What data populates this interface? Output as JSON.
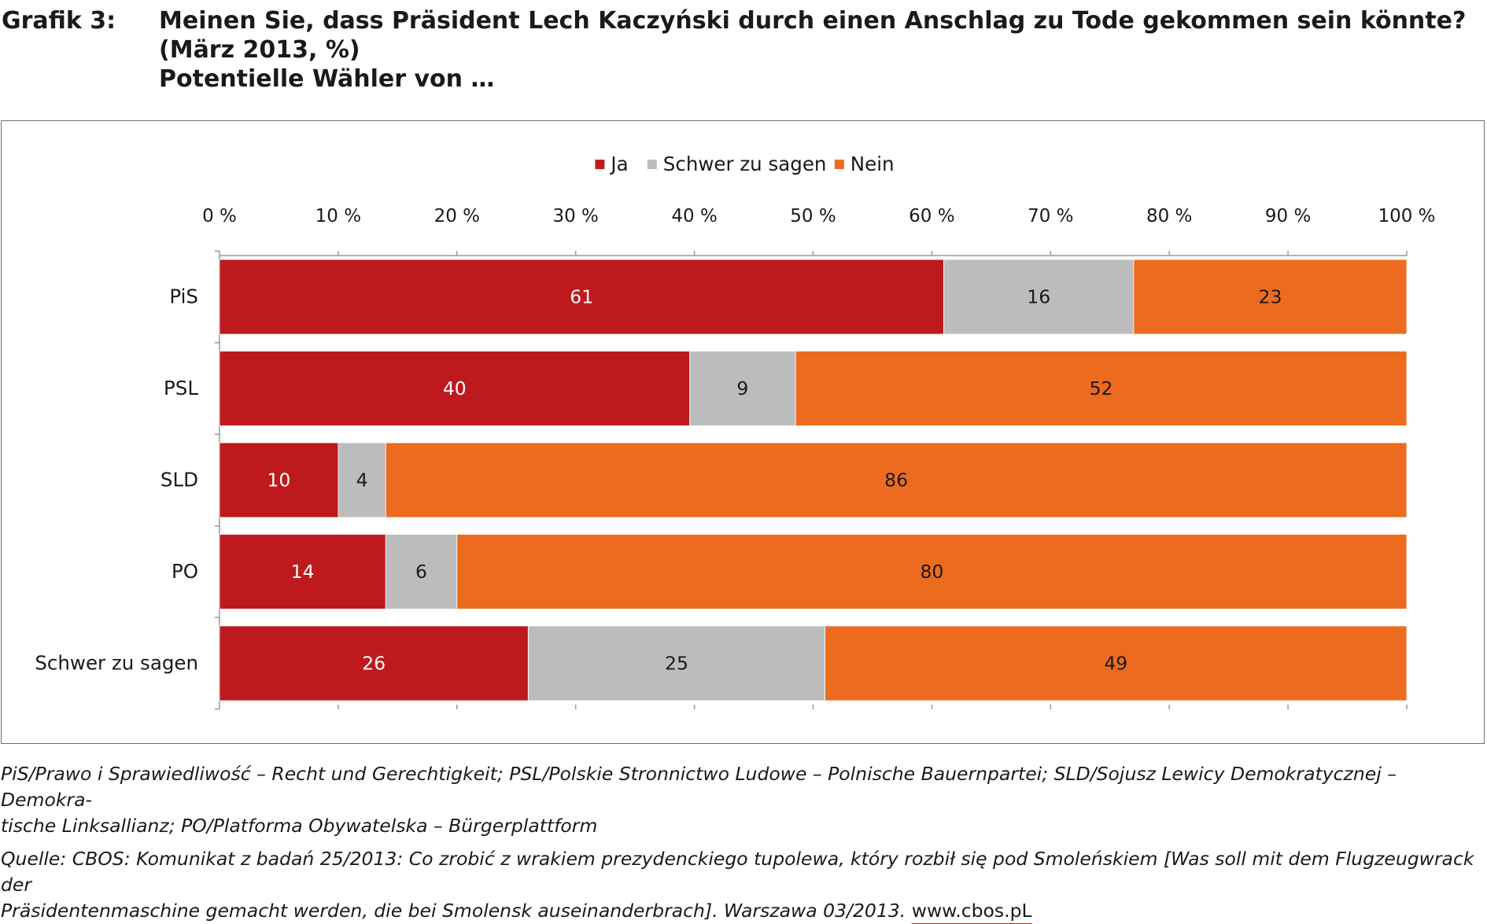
{
  "header": {
    "label": "Grafik 3:",
    "lines": [
      "Meinen Sie, dass Präsident Lech Kaczyński durch einen Anschlag zu Tode gekommen sein könnte?",
      "(März 2013, %)",
      "Potentielle Wähler von …"
    ]
  },
  "chart_data": {
    "type": "bar",
    "orientation": "horizontal",
    "stacked": true,
    "categories": [
      "PiS",
      "PSL",
      "SLD",
      "PO",
      "Schwer zu sagen"
    ],
    "series": [
      {
        "name": "Ja",
        "color": "#be1a1e",
        "values": [
          61,
          40,
          10,
          14,
          26
        ]
      },
      {
        "name": "Schwer zu sagen",
        "color": "#bcbcbc",
        "values": [
          16,
          9,
          4,
          6,
          25
        ]
      },
      {
        "name": "Nein",
        "color": "#ed6b1e",
        "values": [
          23,
          52,
          86,
          80,
          49
        ]
      }
    ],
    "xlim": [
      0,
      100
    ],
    "xticks": [
      "0 %",
      "10 %",
      "20 %",
      "30 %",
      "40 %",
      "50 %",
      "60 %",
      "70 %",
      "80 %",
      "90 %",
      "100 %"
    ],
    "legend_position": "top-center",
    "axis_position": "top",
    "grid": false
  },
  "footnotes": {
    "abbreviations_line1": "PiS/Prawo i Sprawiedliwość – Recht und Gerechtigkeit; PSL/Polskie Stronnictwo Ludowe – Polnische Bauernpartei; SLD/Sojusz Lewicy Demokratycznej – Demokra-",
    "abbreviations_line2": "tische Linksallianz; PO/Platforma Obywatelska – Bürgerplattform",
    "source_line1": "Quelle: CBOS: Komunikat z badań 25/2013: Co zrobić z wrakiem prezydenckiego tupolewa, który rozbił się pod Smoleńskiem [Was soll mit dem Flugzeugwrack der",
    "source_line2": "Präsidentenmaschine gemacht werden, die bei Smolensk auseinanderbrach]. Warszawa 03/2013.",
    "link": "www.cbos.pL"
  }
}
